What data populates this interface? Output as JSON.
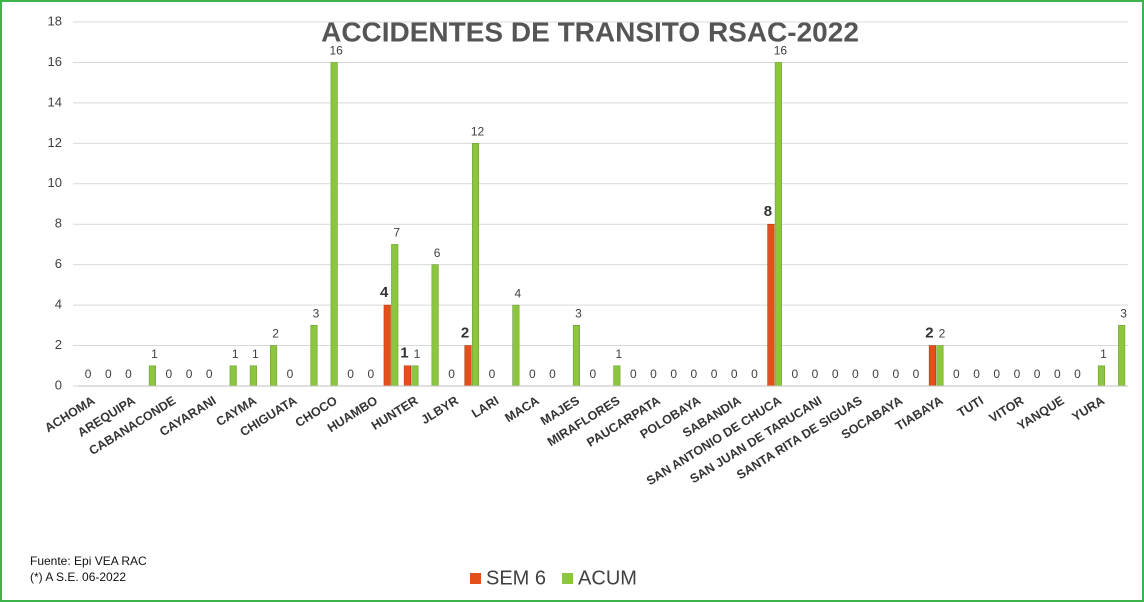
{
  "chart_data": {
    "type": "bar",
    "title": "ACCIDENTES DE TRANSITO RSAC-2022",
    "categories": [
      "ACHOMA",
      null,
      "AREQUIPA",
      null,
      "CABANACONDE",
      null,
      "CAYARANI",
      null,
      "CAYMA",
      null,
      "CHIGUATA",
      null,
      "CHOCO",
      null,
      "HUAMBO",
      null,
      "HUNTER",
      null,
      "JLBYR",
      null,
      "LARI",
      null,
      "MACA",
      null,
      "MAJES",
      null,
      "MIRAFLORES",
      null,
      "PAUCARPATA",
      null,
      "POLOBAYA",
      null,
      "SABANDIA",
      null,
      "SAN ANTONIO DE CHUCA",
      null,
      "SAN JUAN DE TARUCANI",
      null,
      "SANTA RITA DE SIGUAS",
      null,
      "SOCABAYA",
      null,
      "TIABAYA",
      null,
      "TUTI",
      null,
      "VITOR",
      null,
      "YANQUE",
      null,
      "YURA",
      null
    ],
    "series": [
      {
        "name": "SEM 6",
        "color": "#e4501c",
        "values": [
          null,
          null,
          null,
          null,
          null,
          null,
          null,
          null,
          null,
          null,
          null,
          null,
          null,
          null,
          null,
          4,
          1,
          null,
          null,
          2,
          null,
          null,
          null,
          null,
          null,
          null,
          null,
          null,
          null,
          null,
          null,
          null,
          null,
          null,
          8,
          null,
          null,
          null,
          null,
          null,
          null,
          null,
          2,
          null,
          null,
          null,
          null,
          null,
          null,
          null,
          null,
          null
        ]
      },
      {
        "name": "ACUM",
        "color": "#8cc63f",
        "values": [
          0,
          0,
          0,
          1,
          0,
          0,
          0,
          1,
          1,
          2,
          0,
          3,
          16,
          0,
          0,
          7,
          1,
          6,
          0,
          12,
          0,
          4,
          0,
          0,
          3,
          0,
          1,
          0,
          0,
          0,
          0,
          0,
          0,
          0,
          16,
          0,
          0,
          0,
          0,
          0,
          0,
          0,
          2,
          0,
          0,
          0,
          0,
          0,
          0,
          0,
          1,
          3
        ]
      }
    ],
    "ylim": [
      0,
      18
    ],
    "yticks": [
      0,
      2,
      4,
      6,
      8,
      10,
      12,
      14,
      16,
      18
    ],
    "grid": true,
    "notes": [
      "Fuente:  Epi VEA RAC",
      "(*) A S.E. 06-2022"
    ]
  }
}
